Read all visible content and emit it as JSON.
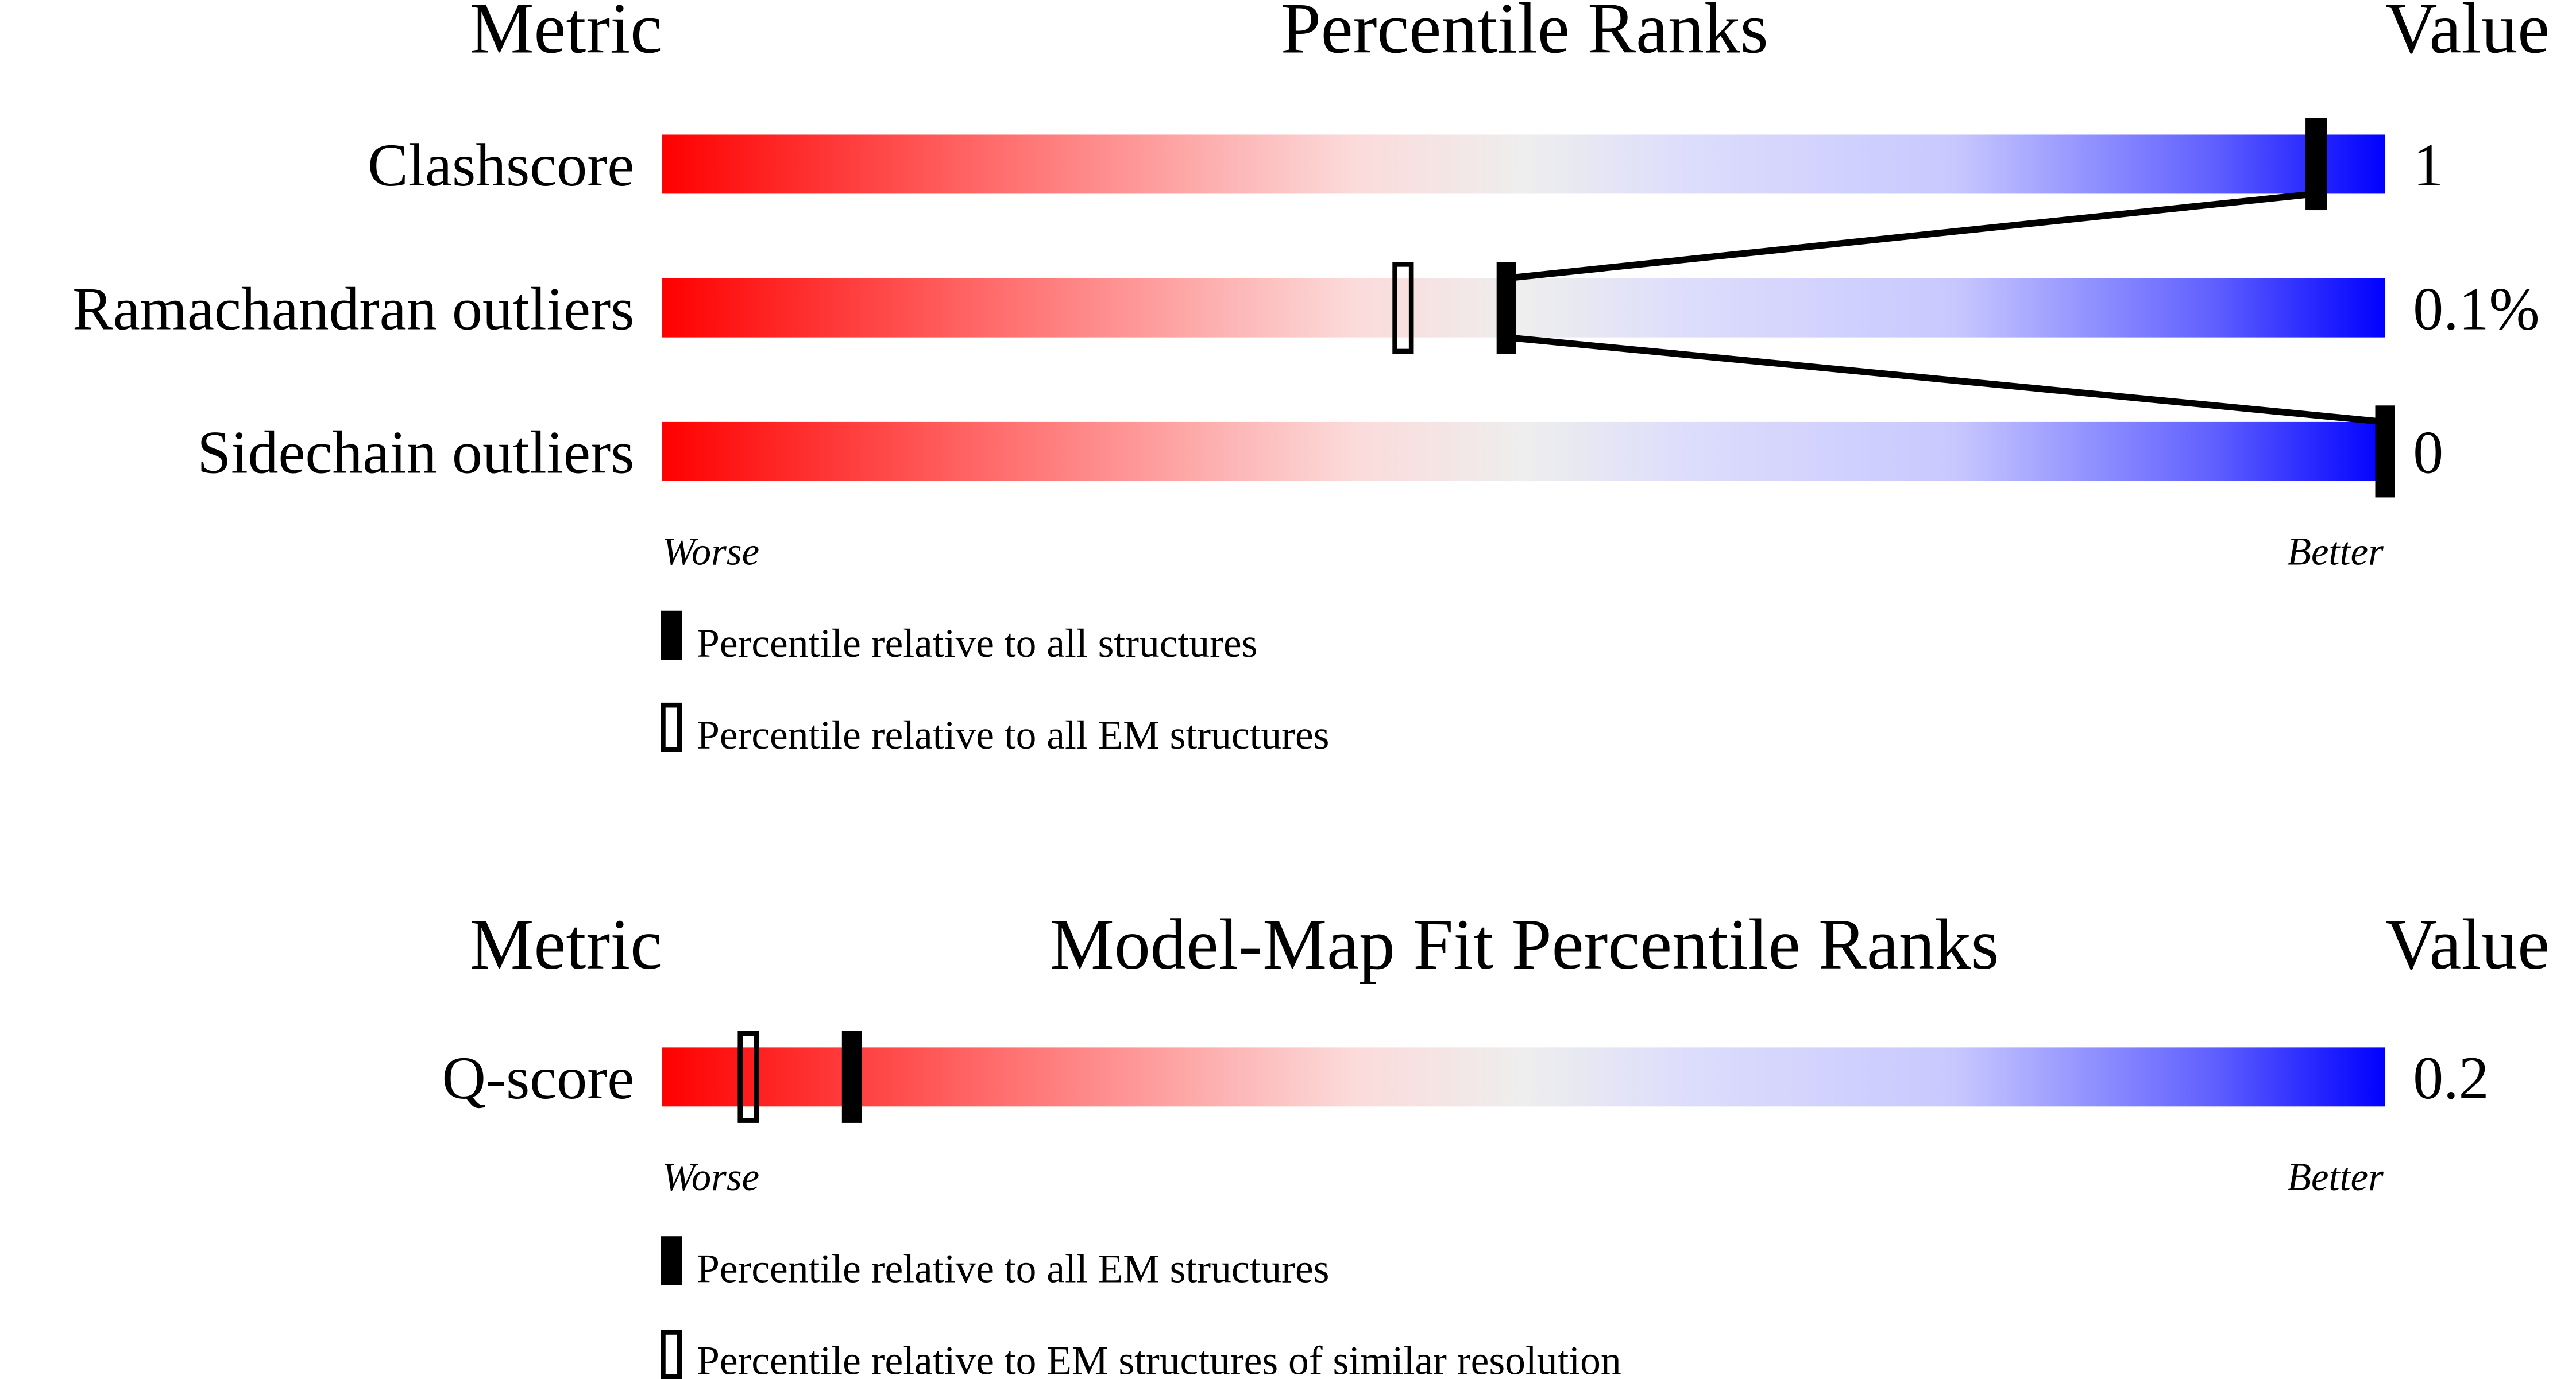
{
  "colors": {
    "worse": "#ff0000",
    "mid": "#eeeeee",
    "better": "#0000ff"
  },
  "chart_data": [
    {
      "type": "percentile-slider",
      "headers": {
        "metric": "Metric",
        "title": "Percentile Ranks",
        "value": "Value"
      },
      "axis": {
        "left": "Worse",
        "right": "Better",
        "range": [
          0,
          100
        ]
      },
      "rows": [
        {
          "metric": "Clashscore",
          "value": "1",
          "percentile_all": 96,
          "percentile_em": 96
        },
        {
          "metric": "Ramachandran outliers",
          "value": "0.1%",
          "percentile_all": 49,
          "percentile_em": 43
        },
        {
          "metric": "Sidechain outliers",
          "value": "0",
          "percentile_all": 100,
          "percentile_em": null
        }
      ],
      "legend": {
        "filled": "Percentile relative to all structures",
        "open": "Percentile relative to all EM structures"
      }
    },
    {
      "type": "percentile-slider",
      "headers": {
        "metric": "Metric",
        "title": "Model-Map Fit Percentile Ranks",
        "value": "Value"
      },
      "axis": {
        "left": "Worse",
        "right": "Better",
        "range": [
          0,
          100
        ]
      },
      "rows": [
        {
          "metric": "Q-score",
          "value": "0.2",
          "percentile_all": 11,
          "percentile_em": 5
        }
      ],
      "legend": {
        "filled": "Percentile relative to all EM structures",
        "open": "Percentile relative to EM structures of similar resolution"
      }
    }
  ]
}
